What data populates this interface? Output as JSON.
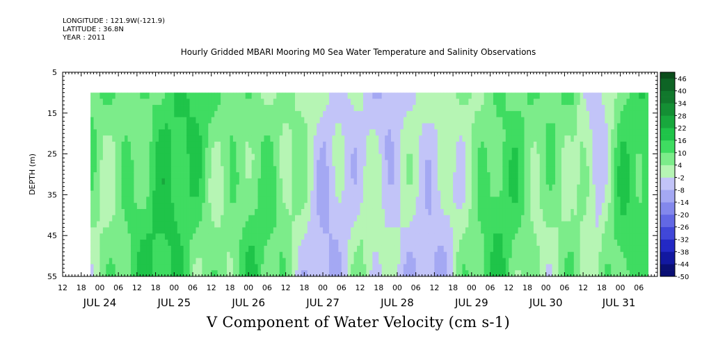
{
  "header": {
    "longitude": "LONGITUDE : 121.9W(-121.9)",
    "latitude": "LATITUDE : 36.8N",
    "year": "YEAR : 2011",
    "title": "Hourly Gridded MBARI Mooring M0 Sea Water Temperature and Salinity Observations"
  },
  "chart_data": {
    "type": "heatmap",
    "title": "Hourly Gridded MBARI Mooring M0 Sea Water Temperature and Salinity Observations",
    "xlabel": "V Component of Water Velocity (cm s-1)",
    "ylabel": "DEPTH (m)",
    "y_axis": {
      "range": [
        5,
        55
      ],
      "inverted": true,
      "ticks": [
        5,
        15,
        25,
        35,
        45,
        55
      ]
    },
    "x_axis": {
      "range_hours": [
        "2011-07-23 12:00",
        "2011-07-31 12:00"
      ],
      "hour_ticks": [
        "12",
        "18",
        "00",
        "06",
        "12",
        "18",
        "00",
        "06",
        "12",
        "18",
        "00",
        "06",
        "12",
        "18",
        "00",
        "06",
        "12",
        "18",
        "00",
        "06",
        "12",
        "18",
        "00",
        "06",
        "12",
        "18",
        "00",
        "06",
        "12",
        "18",
        "00",
        "06"
      ],
      "day_labels": [
        "JUL 24",
        "JUL 25",
        "JUL 26",
        "JUL 27",
        "JUL 28",
        "JUL 29",
        "JUL 30",
        "JUL 31"
      ]
    },
    "data_extent": {
      "time": [
        "2011-07-23 21:00",
        "2011-07-31 09:00"
      ],
      "depth": [
        10,
        55
      ]
    },
    "colorbar": {
      "labels": [
        "46",
        "40",
        "34",
        "28",
        "22",
        "16",
        "10",
        "4",
        "-2",
        "-8",
        "-14",
        "-20",
        "-26",
        "-32",
        "-38",
        "-44",
        "-50"
      ],
      "range": [
        -50,
        49
      ],
      "step": 3
    },
    "approx_regime_by_day": [
      {
        "day": "JUL 24",
        "v": 8
      },
      {
        "day": "JUL 25",
        "v": 12
      },
      {
        "day": "JUL 26",
        "v": 6
      },
      {
        "day": "JUL 27",
        "v": -4
      },
      {
        "day": "JUL 28",
        "v": -3
      },
      {
        "day": "JUL 29",
        "v": 8
      },
      {
        "day": "JUL 30",
        "v": 9
      },
      {
        "day": "JUL 31",
        "v": 12
      }
    ]
  }
}
